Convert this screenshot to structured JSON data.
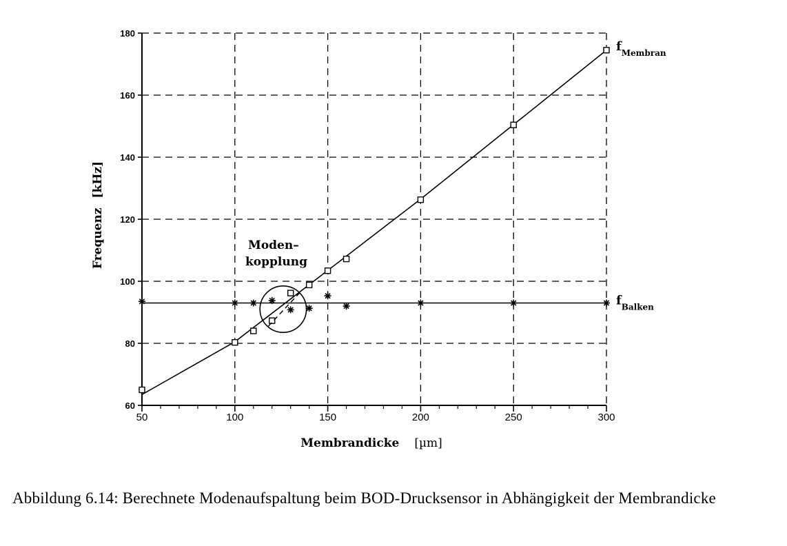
{
  "chart_data": {
    "type": "line",
    "xlabel": "Membrandicke",
    "xunit": "[µm]",
    "ylabel": "Frequenz",
    "yunit": "[kHz]",
    "xlim": [
      50,
      300
    ],
    "ylim": [
      60,
      180
    ],
    "x_ticks": [
      50,
      100,
      150,
      200,
      250,
      300
    ],
    "x_tick_labels": [
      "50",
      "100",
      "150",
      "200",
      "250",
      "300"
    ],
    "x_minor_ticks": [
      60,
      70,
      80,
      90,
      110,
      120,
      130,
      140,
      160,
      170,
      180,
      190,
      210,
      220,
      230,
      240,
      260,
      270,
      280,
      290
    ],
    "y_ticks": [
      60,
      80,
      100,
      120,
      140,
      160,
      180
    ],
    "y_tick_labels": [
      "60",
      "80",
      "100",
      "120",
      "140",
      "160",
      "180"
    ],
    "grid": true,
    "series": [
      {
        "name_main": "f",
        "name_sub": "Membran",
        "marker": "square",
        "line": [
          {
            "x": 50,
            "y": 63.5
          },
          {
            "x": 100,
            "y": 80.5
          },
          {
            "x": 150,
            "y": 103.5
          },
          {
            "x": 200,
            "y": 126.5
          },
          {
            "x": 250,
            "y": 150.5
          },
          {
            "x": 300,
            "y": 174.5
          }
        ],
        "points": [
          {
            "x": 50,
            "y": 65
          },
          {
            "x": 100,
            "y": 80.3
          },
          {
            "x": 110,
            "y": 84
          },
          {
            "x": 120,
            "y": 87.3
          },
          {
            "x": 130,
            "y": 96.2
          },
          {
            "x": 140,
            "y": 98.8
          },
          {
            "x": 150,
            "y": 103.4
          },
          {
            "x": 160,
            "y": 107.2
          },
          {
            "x": 200,
            "y": 126.3
          },
          {
            "x": 250,
            "y": 150.4
          },
          {
            "x": 300,
            "y": 174.5
          }
        ]
      },
      {
        "name_main": "f",
        "name_sub": "Balken",
        "marker": "star",
        "line": [
          {
            "x": 50,
            "y": 93
          },
          {
            "x": 300,
            "y": 93
          }
        ],
        "points": [
          {
            "x": 50,
            "y": 93.5
          },
          {
            "x": 100,
            "y": 93
          },
          {
            "x": 110,
            "y": 93
          },
          {
            "x": 120,
            "y": 93.8
          },
          {
            "x": 130,
            "y": 90.8
          },
          {
            "x": 140,
            "y": 91.3
          },
          {
            "x": 150,
            "y": 95.3
          },
          {
            "x": 160,
            "y": 92
          },
          {
            "x": 200,
            "y": 93
          },
          {
            "x": 250,
            "y": 93
          },
          {
            "x": 300,
            "y": 93
          }
        ]
      }
    ],
    "annotations": [
      {
        "text_lines": [
          "Moden–",
          "kopplung"
        ],
        "circle_center": {
          "x": 126,
          "y": 91
        },
        "circle_radius_x_units": 12.5
      }
    ]
  },
  "caption": {
    "text": "Abbildung 6.14: Berechnete Modenaufspaltung beim BOD-Drucksensor in Abhängigkeit der Membrandicke"
  }
}
